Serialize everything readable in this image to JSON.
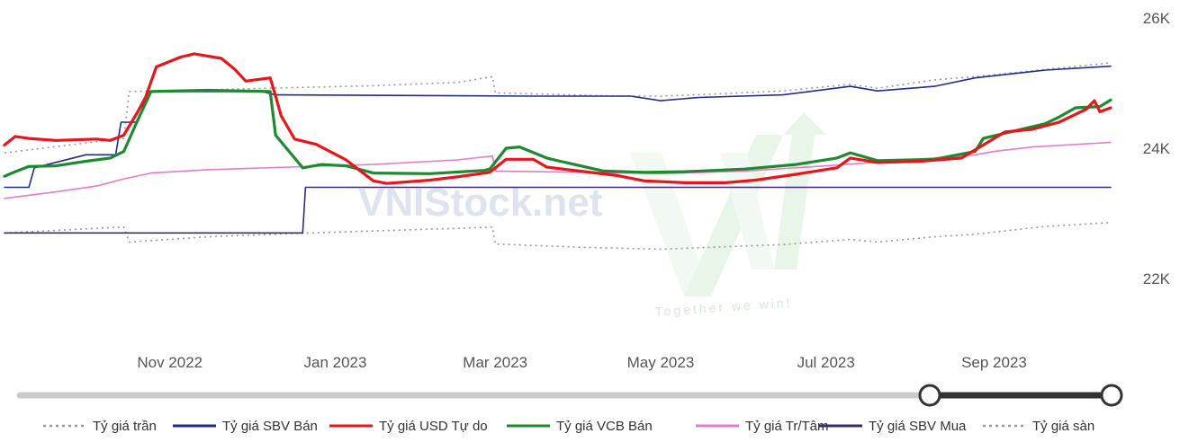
{
  "chart_data": {
    "type": "line",
    "x_start": "2022-09-01",
    "x_end": "2023-10-14",
    "xticks": [
      {
        "date": "2022-11-01",
        "label": "Nov 2022"
      },
      {
        "date": "2023-01-01",
        "label": "Jan 2023"
      },
      {
        "date": "2023-03-01",
        "label": "Mar 2023"
      },
      {
        "date": "2023-05-01",
        "label": "May 2023"
      },
      {
        "date": "2023-07-01",
        "label": "Jul 2023"
      },
      {
        "date": "2023-09-01",
        "label": "Sep 2023"
      }
    ],
    "yticks": [
      {
        "value": 22000,
        "label": "22K"
      },
      {
        "value": 24000,
        "label": "24K"
      },
      {
        "value": 26000,
        "label": "26K"
      }
    ],
    "ylim": [
      22000,
      26000
    ],
    "grid": false,
    "legend_position": "bottom",
    "series": [
      {
        "name": "Tỷ giá trần",
        "color": "#999999",
        "style": "dotted",
        "width": 1.6,
        "points": [
          [
            "2022-09-01",
            23930
          ],
          [
            "2022-10-15",
            24150
          ],
          [
            "2022-10-17",
            24870
          ],
          [
            "2022-11-15",
            24900
          ],
          [
            "2022-12-15",
            24930
          ],
          [
            "2023-01-15",
            24960
          ],
          [
            "2023-02-15",
            25010
          ],
          [
            "2023-02-28",
            25100
          ],
          [
            "2023-03-01",
            24850
          ],
          [
            "2023-03-20",
            24830
          ],
          [
            "2023-04-15",
            24800
          ],
          [
            "2023-05-01",
            24800
          ],
          [
            "2023-05-20",
            24830
          ],
          [
            "2023-06-15",
            24880
          ],
          [
            "2023-07-10",
            24980
          ],
          [
            "2023-07-20",
            24920
          ],
          [
            "2023-08-10",
            25050
          ],
          [
            "2023-08-25",
            25100
          ],
          [
            "2023-09-20",
            25210
          ],
          [
            "2023-10-14",
            25310
          ]
        ]
      },
      {
        "name": "Tỷ giá SBV Bán",
        "color": "#1f2e8a",
        "style": "solid",
        "width": 1.6,
        "points": [
          [
            "2022-09-01",
            23400
          ],
          [
            "2022-09-10",
            23400
          ],
          [
            "2022-09-12",
            23700
          ],
          [
            "2022-10-01",
            23900
          ],
          [
            "2022-10-12",
            23900
          ],
          [
            "2022-10-14",
            24400
          ],
          [
            "2022-10-20",
            24400
          ],
          [
            "2022-10-24",
            24870
          ],
          [
            "2022-12-05",
            24870
          ],
          [
            "2022-12-10",
            24820
          ],
          [
            "2023-03-15",
            24800
          ],
          [
            "2023-04-20",
            24800
          ],
          [
            "2023-05-01",
            24730
          ],
          [
            "2023-05-15",
            24780
          ],
          [
            "2023-06-15",
            24820
          ],
          [
            "2023-07-10",
            24950
          ],
          [
            "2023-07-20",
            24880
          ],
          [
            "2023-08-10",
            24950
          ],
          [
            "2023-08-25",
            25080
          ],
          [
            "2023-09-20",
            25200
          ],
          [
            "2023-10-14",
            25260
          ]
        ]
      },
      {
        "name": "Tỷ giá USD Tự do",
        "color": "#e8151b",
        "style": "solid",
        "width": 3.2,
        "points": [
          [
            "2022-09-01",
            24050
          ],
          [
            "2022-09-05",
            24180
          ],
          [
            "2022-09-10",
            24150
          ],
          [
            "2022-09-20",
            24120
          ],
          [
            "2022-10-05",
            24140
          ],
          [
            "2022-10-10",
            24120
          ],
          [
            "2022-10-15",
            24200
          ],
          [
            "2022-10-20",
            24550
          ],
          [
            "2022-10-23",
            24780
          ],
          [
            "2022-10-27",
            25250
          ],
          [
            "2022-11-05",
            25400
          ],
          [
            "2022-11-10",
            25450
          ],
          [
            "2022-11-20",
            25380
          ],
          [
            "2022-11-25",
            25210
          ],
          [
            "2022-11-29",
            25030
          ],
          [
            "2022-12-08",
            25080
          ],
          [
            "2022-12-10",
            24800
          ],
          [
            "2022-12-12",
            24500
          ],
          [
            "2022-12-17",
            24140
          ],
          [
            "2022-12-25",
            24060
          ],
          [
            "2023-01-05",
            23820
          ],
          [
            "2023-01-10",
            23660
          ],
          [
            "2023-01-15",
            23500
          ],
          [
            "2023-01-20",
            23460
          ],
          [
            "2023-02-05",
            23510
          ],
          [
            "2023-02-15",
            23560
          ],
          [
            "2023-02-27",
            23630
          ],
          [
            "2023-03-05",
            23830
          ],
          [
            "2023-03-15",
            23830
          ],
          [
            "2023-03-20",
            23710
          ],
          [
            "2023-04-01",
            23650
          ],
          [
            "2023-04-15",
            23580
          ],
          [
            "2023-04-25",
            23500
          ],
          [
            "2023-05-10",
            23470
          ],
          [
            "2023-05-25",
            23470
          ],
          [
            "2023-06-05",
            23510
          ],
          [
            "2023-06-20",
            23600
          ],
          [
            "2023-07-05",
            23700
          ],
          [
            "2023-07-10",
            23850
          ],
          [
            "2023-07-20",
            23780
          ],
          [
            "2023-08-05",
            23800
          ],
          [
            "2023-08-20",
            23850
          ],
          [
            "2023-08-28",
            24050
          ],
          [
            "2023-09-05",
            24250
          ],
          [
            "2023-09-15",
            24290
          ],
          [
            "2023-09-25",
            24400
          ],
          [
            "2023-10-05",
            24600
          ],
          [
            "2023-10-08",
            24730
          ],
          [
            "2023-10-10",
            24560
          ],
          [
            "2023-10-14",
            24620
          ]
        ]
      },
      {
        "name": "Tỷ giá VCB Bán",
        "color": "#1e8a30",
        "style": "solid",
        "width": 3.2,
        "points": [
          [
            "2022-09-01",
            23570
          ],
          [
            "2022-09-05",
            23640
          ],
          [
            "2022-09-10",
            23720
          ],
          [
            "2022-09-20",
            23730
          ],
          [
            "2022-10-01",
            23800
          ],
          [
            "2022-10-10",
            23850
          ],
          [
            "2022-10-15",
            23950
          ],
          [
            "2022-10-20",
            24420
          ],
          [
            "2022-10-25",
            24870
          ],
          [
            "2022-11-15",
            24890
          ],
          [
            "2022-12-08",
            24870
          ],
          [
            "2022-12-10",
            24200
          ],
          [
            "2022-12-17",
            23850
          ],
          [
            "2022-12-20",
            23700
          ],
          [
            "2022-12-27",
            23750
          ],
          [
            "2023-01-05",
            23730
          ],
          [
            "2023-01-15",
            23620
          ],
          [
            "2023-02-05",
            23610
          ],
          [
            "2023-02-25",
            23660
          ],
          [
            "2023-02-27",
            23680
          ],
          [
            "2023-03-05",
            24000
          ],
          [
            "2023-03-10",
            24020
          ],
          [
            "2023-03-20",
            23850
          ],
          [
            "2023-03-25",
            23800
          ],
          [
            "2023-04-10",
            23650
          ],
          [
            "2023-04-25",
            23630
          ],
          [
            "2023-05-10",
            23640
          ],
          [
            "2023-06-01",
            23680
          ],
          [
            "2023-06-20",
            23750
          ],
          [
            "2023-07-05",
            23850
          ],
          [
            "2023-07-10",
            23930
          ],
          [
            "2023-07-20",
            23810
          ],
          [
            "2023-08-10",
            23830
          ],
          [
            "2023-08-25",
            23950
          ],
          [
            "2023-08-28",
            24150
          ],
          [
            "2023-09-10",
            24280
          ],
          [
            "2023-09-20",
            24380
          ],
          [
            "2023-09-25",
            24480
          ],
          [
            "2023-10-01",
            24620
          ],
          [
            "2023-10-10",
            24640
          ],
          [
            "2023-10-14",
            24740
          ]
        ]
      },
      {
        "name": "Tỷ giá Tr/Tâm",
        "color": "#e87ac8",
        "style": "solid",
        "width": 1.6,
        "points": [
          [
            "2022-09-01",
            23230
          ],
          [
            "2022-09-20",
            23330
          ],
          [
            "2022-10-05",
            23420
          ],
          [
            "2022-10-15",
            23530
          ],
          [
            "2022-10-25",
            23620
          ],
          [
            "2022-11-15",
            23670
          ],
          [
            "2022-12-15",
            23710
          ],
          [
            "2023-01-15",
            23750
          ],
          [
            "2023-02-15",
            23820
          ],
          [
            "2023-02-28",
            23880
          ],
          [
            "2023-03-01",
            23650
          ],
          [
            "2023-04-01",
            23630
          ],
          [
            "2023-05-01",
            23610
          ],
          [
            "2023-06-01",
            23650
          ],
          [
            "2023-07-01",
            23730
          ],
          [
            "2023-08-01",
            23820
          ],
          [
            "2023-08-25",
            23900
          ],
          [
            "2023-09-01",
            23950
          ],
          [
            "2023-09-15",
            24020
          ],
          [
            "2023-10-14",
            24090
          ]
        ]
      },
      {
        "name": "Tỷ giá SBV Mua",
        "color": "#3d2b6e",
        "style": "solid",
        "width": 1.6,
        "points": [
          [
            "2022-09-01",
            22700
          ],
          [
            "2022-12-20",
            22700
          ],
          [
            "2022-12-21",
            23400
          ],
          [
            "2023-10-14",
            23400
          ]
        ]
      },
      {
        "name": "Tỷ giá sàn",
        "color": "#999999",
        "style": "dotted",
        "width": 1.6,
        "points": [
          [
            "2022-09-01",
            22700
          ],
          [
            "2022-10-15",
            22790
          ],
          [
            "2022-10-17",
            22560
          ],
          [
            "2022-11-15",
            22640
          ],
          [
            "2022-12-15",
            22690
          ],
          [
            "2023-01-15",
            22730
          ],
          [
            "2023-02-15",
            22770
          ],
          [
            "2023-02-28",
            22790
          ],
          [
            "2023-03-01",
            22530
          ],
          [
            "2023-04-01",
            22480
          ],
          [
            "2023-05-01",
            22450
          ],
          [
            "2023-05-20",
            22480
          ],
          [
            "2023-06-15",
            22520
          ],
          [
            "2023-07-10",
            22600
          ],
          [
            "2023-07-20",
            22560
          ],
          [
            "2023-08-10",
            22640
          ],
          [
            "2023-08-25",
            22680
          ],
          [
            "2023-09-20",
            22800
          ],
          [
            "2023-10-14",
            22860
          ]
        ]
      }
    ]
  },
  "watermark": {
    "brand_text": "VNIStock.net",
    "slogan": "Together we win!"
  },
  "range_slider": {
    "start_fraction": 0.76,
    "end_fraction": 1.0
  }
}
